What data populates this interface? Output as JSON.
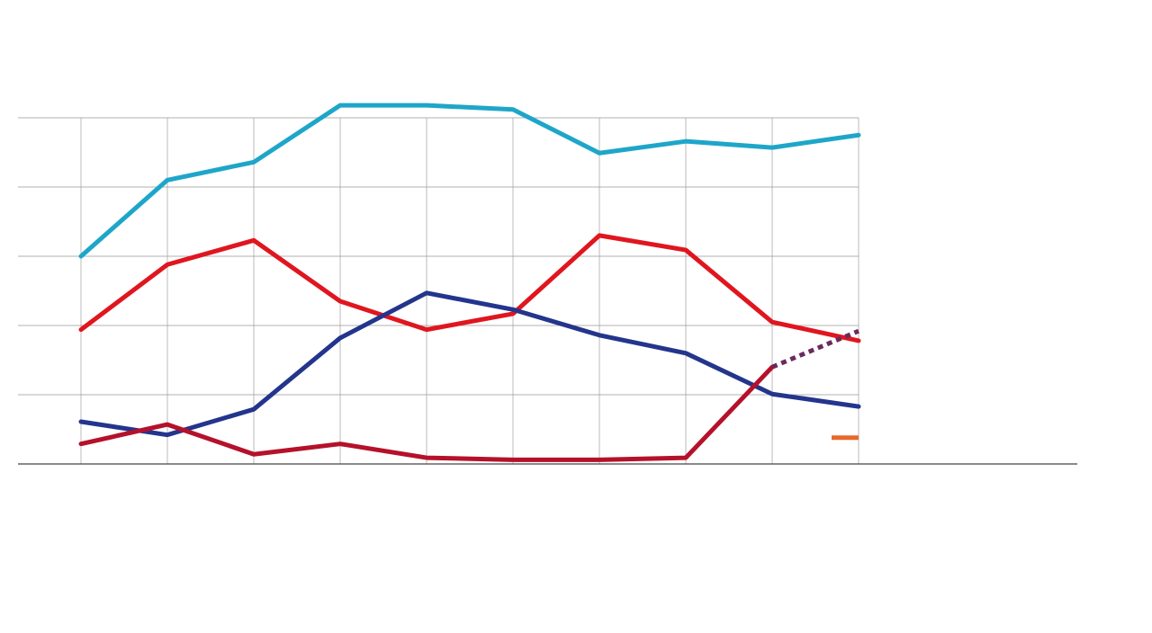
{
  "chart_data": {
    "type": "line",
    "categories": [
      null,
      null,
      null,
      null,
      null,
      null,
      null,
      null,
      null,
      null
    ],
    "series": [
      {
        "color": "#1ea6c9",
        "values": [
          30.0,
          41.0,
          43.6,
          51.8,
          51.8,
          51.2,
          44.9,
          46.6,
          45.7,
          47.5
        ]
      },
      {
        "color": "#e0161f",
        "values": [
          19.4,
          28.8,
          32.3,
          23.5,
          19.4,
          21.7,
          33.0,
          30.9,
          20.5,
          17.8
        ]
      },
      {
        "color": "#23358c",
        "values": [
          6.1,
          4.2,
          7.9,
          18.2,
          24.7,
          22.3,
          18.6,
          16.0,
          10.1,
          8.3
        ]
      },
      {
        "color": "#b5112a",
        "values": [
          2.9,
          5.7,
          1.4,
          2.9,
          0.9,
          0.6,
          0.6,
          0.9,
          14.0,
          null
        ]
      },
      {
        "color": "#6a2a5e",
        "style": "dotted",
        "values": [
          null,
          null,
          null,
          null,
          null,
          null,
          null,
          null,
          14.0,
          19.2
        ]
      },
      {
        "color": "#e8692a",
        "style": "dash-marker",
        "values": [
          null,
          null,
          null,
          null,
          null,
          null,
          null,
          null,
          null,
          3.8
        ]
      }
    ],
    "ylim": [
      0,
      60
    ],
    "yticks": [
      0,
      10,
      20,
      30,
      40,
      50
    ],
    "grid": true
  }
}
